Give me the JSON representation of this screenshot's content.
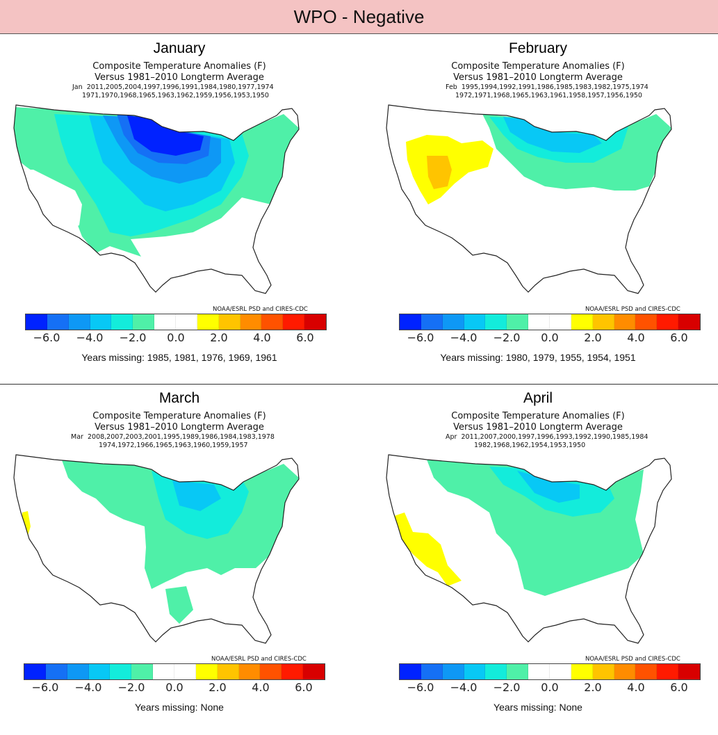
{
  "page_title": "WPO - Negative",
  "legend": {
    "colors": [
      "#0022ff",
      "#1570f5",
      "#0e98f5",
      "#08c8f5",
      "#13ecdb",
      "#4ff0a8",
      "#ffffff",
      "#ffffff",
      "#ffff00",
      "#ffc400",
      "#ff8c00",
      "#ff5200",
      "#ff1a00",
      "#d80000"
    ],
    "ticks": [
      "−6.0",
      "−4.0",
      "−2.0",
      "0.0",
      "2.0",
      "4.0",
      "6.0"
    ],
    "credit": "NOAA/ESRL PSD and CIRES-CDC"
  },
  "panels": [
    {
      "month": "January",
      "title1": "Composite Temperature Anomalies (F)",
      "title2": "Versus 1981–2010 Longterm Average",
      "month_abbr": "Jan",
      "years_line1": "2011,2005,2004,1997,1996,1991,1984,1980,1977,1974",
      "years_line2": "1971,1970,1968,1965,1963,1962,1959,1956,1953,1950",
      "missing": "Years missing: 1985, 1981, 1976, 1969, 1961",
      "fill_color": "#4ff0a8",
      "regions": [
        {
          "label": "Northern Plains core",
          "anomaly": -6.0
        },
        {
          "label": "Upper Midwest",
          "anomaly": -4.0
        },
        {
          "label": "Central Plains",
          "anomaly": -3.0
        },
        {
          "label": "Rockies and Northeast",
          "anomaly": -1.5
        }
      ]
    },
    {
      "month": "February",
      "title1": "Composite Temperature Anomalies (F)",
      "title2": "Versus 1981–2010 Longterm Average",
      "month_abbr": "Feb",
      "years_line1": "1995,1994,1992,1991,1986,1985,1983,1982,1975,1974",
      "years_line2": "1972,1971,1968,1965,1963,1961,1958,1957,1956,1950",
      "missing": "Years missing: 1980, 1979, 1955, 1954, 1951",
      "fill_color": "#4ff0a8",
      "regions": [
        {
          "label": "Northern Plains",
          "anomaly": -3.0
        },
        {
          "label": "Midwest and Northeast",
          "anomaly": -1.5
        },
        {
          "label": "Nevada and Idaho",
          "anomaly": 1.5
        },
        {
          "label": "Central Nevada",
          "anomaly": 2.5
        }
      ]
    },
    {
      "month": "March",
      "title1": "Composite Temperature Anomalies (F)",
      "title2": "Versus 1981–2010 Longterm Average",
      "month_abbr": "Mar",
      "years_line1": "2008,2007,2003,2001,1995,1989,1986,1984,1983,1978",
      "years_line2": "1974,1972,1966,1965,1963,1960,1959,1957",
      "missing": "Years missing: None",
      "fill_color": "#4ff0a8",
      "regions": [
        {
          "label": "Upper Midwest",
          "anomaly": -2.5
        },
        {
          "label": "Central and Eastern US",
          "anomaly": -1.5
        },
        {
          "label": "Western Nevada",
          "anomaly": 1.5
        }
      ]
    },
    {
      "month": "April",
      "title1": "Composite Temperature Anomalies (F)",
      "title2": "Versus 1981–2010 Longterm Average",
      "month_abbr": "Apr",
      "years_line1": "2011,2007,2000,1997,1996,1993,1992,1990,1985,1984",
      "years_line2": "1982,1968,1962,1954,1953,1950",
      "missing": "Years missing: None",
      "fill_color": "#4ff0a8",
      "regions": [
        {
          "label": "North Dakota and Minnesota",
          "anomaly": -2.5
        },
        {
          "label": "Central and Eastern US",
          "anomaly": -1.5
        },
        {
          "label": "California and Arizona",
          "anomaly": 1.5
        }
      ]
    }
  ]
}
